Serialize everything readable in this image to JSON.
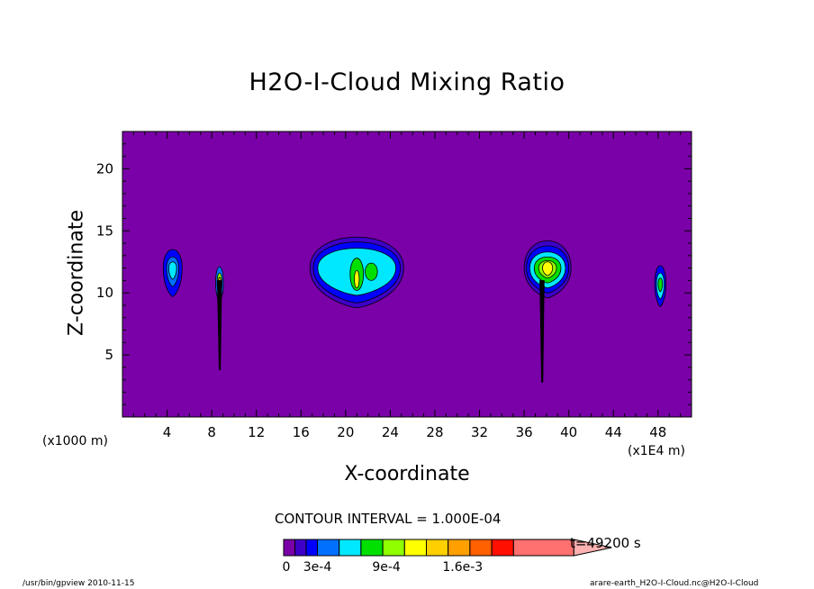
{
  "chart_data": {
    "type": "heatmap",
    "title": "H2O-I-Cloud Mixing Ratio",
    "xlabel": "X-coordinate",
    "ylabel": "Z-coordinate",
    "x_unit_left": "(x1000 m)",
    "x_unit_right": "(x1E4 m)",
    "xlim": [
      0,
      51
    ],
    "ylim": [
      0,
      23
    ],
    "x_ticks": [
      4,
      8,
      12,
      16,
      20,
      24,
      28,
      32,
      36,
      40,
      44,
      48
    ],
    "y_ticks": [
      5,
      10,
      15,
      20
    ],
    "contour_interval": "CONTOUR INTERVAL = 1.000E-04",
    "time": "t=49200 s",
    "colorbar": {
      "labels": [
        {
          "text": "0",
          "index": 0
        },
        {
          "text": "3e-4",
          "index": 3
        },
        {
          "text": "9e-4",
          "index": 9
        },
        {
          "text": "1.6e-3",
          "index": 16
        }
      ],
      "colors": [
        "#7a00a8",
        "#3e00c8",
        "#0000ff",
        "#0070ff",
        "#00e8ff",
        "#00e000",
        "#90ff00",
        "#ffff00",
        "#ffd000",
        "#ffa000",
        "#ff6000",
        "#ff1000",
        "#ff7070",
        "#ffb0b0"
      ]
    },
    "background_color": "#7a00a8",
    "clouds": [
      {
        "name": "cloud-x5",
        "cx": 4.5,
        "cz": 12.0,
        "levels": [
          {
            "rx": 0.85,
            "rt": 1.5,
            "rb": 2.3,
            "color": "#0000ff"
          },
          {
            "rx": 0.55,
            "rt": 0.9,
            "rb": 1.5,
            "color": "#0070ff"
          },
          {
            "rx": 0.35,
            "rt": 0.5,
            "rb": 0.9,
            "color": "#00e8ff"
          }
        ]
      },
      {
        "name": "cloud-x8",
        "cx": 8.7,
        "cz": 10.8,
        "levels": [
          {
            "rx": 0.35,
            "rt": 1.3,
            "rb": 1.5,
            "color": "#0070ff"
          },
          {
            "rx": 0.22,
            "rt": 0.8,
            "rb": 0.9,
            "color": "#90ff00"
          },
          {
            "rx": 0.12,
            "rt": 0.45,
            "rb": 0.5,
            "color": "#ffd000"
          }
        ]
      },
      {
        "name": "cloud-x21",
        "cx": 21.0,
        "cz": 12.0,
        "levels": [
          {
            "rx": 4.2,
            "rt": 2.5,
            "rb": 3.2,
            "color": "#3e00c8"
          },
          {
            "rx": 3.9,
            "rt": 2.1,
            "rb": 2.8,
            "color": "#0000ff"
          },
          {
            "rx": 3.5,
            "rt": 1.6,
            "rb": 2.2,
            "color": "#00e8ff"
          }
        ],
        "cores": [
          {
            "cx": 21.0,
            "cz": 11.5,
            "rx": 0.6,
            "ry": 1.3,
            "color": "#00e000"
          },
          {
            "cx": 22.3,
            "cz": 11.7,
            "rx": 0.55,
            "ry": 0.7,
            "color": "#00e000"
          },
          {
            "cx": 21.0,
            "cz": 11.1,
            "rx": 0.22,
            "ry": 0.7,
            "color": "#ffff00"
          }
        ]
      },
      {
        "name": "cloud-x38",
        "cx": 38.1,
        "cz": 12.0,
        "levels": [
          {
            "rx": 2.1,
            "rt": 2.2,
            "rb": 2.4,
            "color": "#3e00c8"
          },
          {
            "rx": 1.9,
            "rt": 1.8,
            "rb": 2.0,
            "color": "#0000ff"
          },
          {
            "rx": 1.6,
            "rt": 1.3,
            "rb": 1.6,
            "color": "#00e8ff"
          },
          {
            "rx": 1.2,
            "rt": 0.9,
            "rb": 1.2,
            "color": "#00e000"
          },
          {
            "rx": 0.8,
            "rt": 0.6,
            "rb": 0.8,
            "color": "#90ff00"
          },
          {
            "rx": 0.45,
            "rt": 0.5,
            "rb": 0.6,
            "color": "#ffff00"
          }
        ]
      },
      {
        "name": "cloud-x48",
        "cx": 48.2,
        "cz": 10.7,
        "levels": [
          {
            "rx": 0.5,
            "rt": 1.5,
            "rb": 1.8,
            "color": "#0000ff"
          },
          {
            "rx": 0.35,
            "rt": 0.9,
            "rb": 1.2,
            "color": "#00e8ff"
          },
          {
            "rx": 0.2,
            "rt": 0.5,
            "rb": 0.6,
            "color": "#00e000"
          }
        ]
      }
    ],
    "stems": [
      {
        "x": 8.7,
        "z_top": 11.0,
        "z_bottom": 3.8
      },
      {
        "x": 37.6,
        "z_top": 11.0,
        "z_bottom": 2.8
      }
    ]
  },
  "footer": {
    "left": "/usr/bin/gpview  2010-11-15",
    "right": "arare-earth_H2O-I-Cloud.nc@H2O-I-Cloud"
  }
}
